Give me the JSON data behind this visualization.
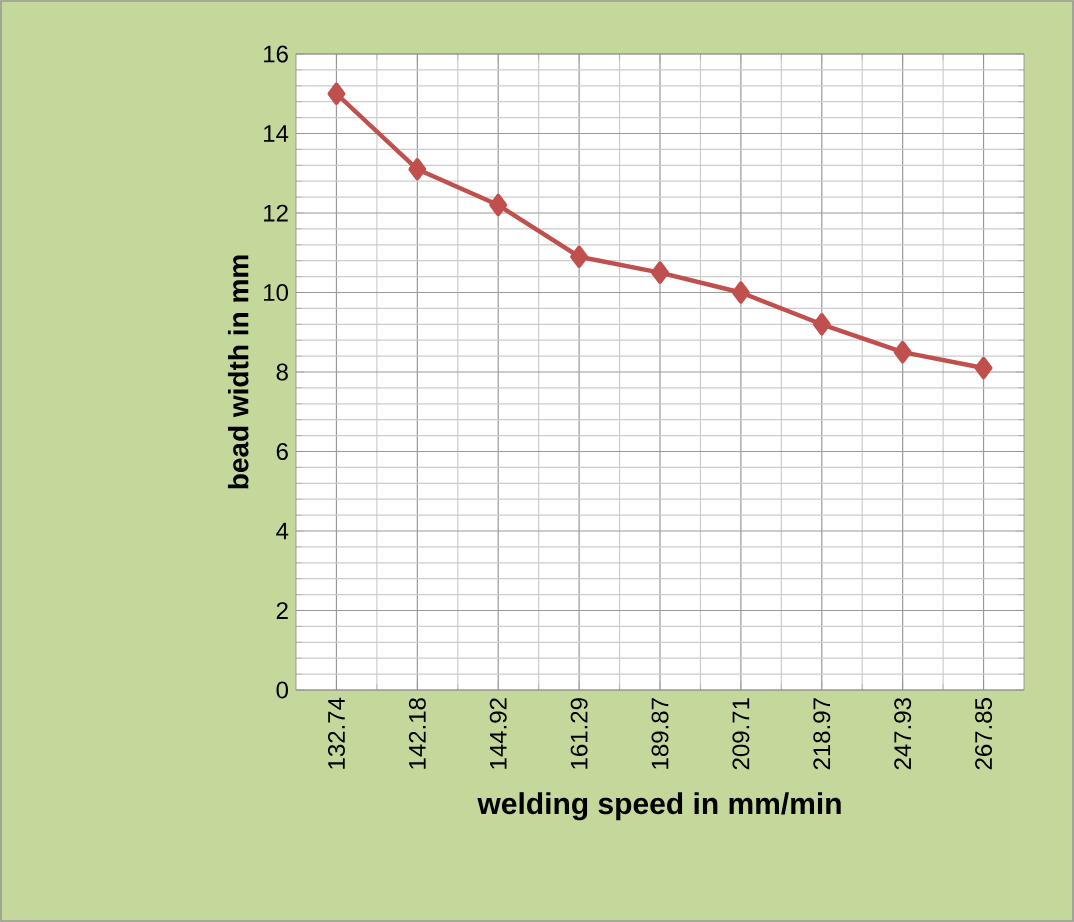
{
  "chart_data": {
    "type": "line",
    "xlabel": "welding speed in mm/min",
    "ylabel": "bead width in mm",
    "categories": [
      "132.74",
      "142.18",
      "144.92",
      "161.29",
      "189.87",
      "209.71",
      "218.97",
      "247.93",
      "267.85"
    ],
    "series": [
      {
        "color": "#c0504d",
        "values": [
          15.0,
          13.1,
          12.2,
          10.9,
          10.5,
          10.0,
          9.2,
          8.5,
          8.1
        ]
      }
    ],
    "ylim": [
      0,
      16
    ],
    "yticks": [
      0,
      2,
      4,
      6,
      8,
      10,
      12,
      14,
      16
    ],
    "grid": true,
    "marker": "diamond",
    "line_style": "solid"
  }
}
